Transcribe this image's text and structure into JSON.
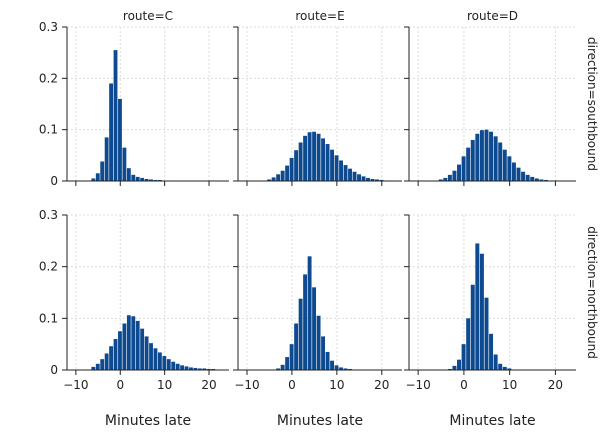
{
  "chart_data": {
    "type": "bar",
    "layout": "facet-grid",
    "xlabel": "Minutes late",
    "ylabel": "",
    "xlim": [
      -12,
      24.5
    ],
    "ylim": [
      0,
      0.3
    ],
    "xticks": [
      -10,
      0,
      10,
      20
    ],
    "yticks": [
      0,
      0.1,
      0.2,
      0.3
    ],
    "yticklabels": [
      "0",
      "0.1",
      "0.2",
      "0.3"
    ],
    "grid": true,
    "bar_color": "#0d4a8f",
    "bin_width": 1,
    "bin_start": -7.5,
    "col_titles": [
      "route=C",
      "route=E",
      "route=D"
    ],
    "row_titles": [
      "direction=southbound",
      "direction=northbound"
    ],
    "panels": [
      {
        "row": 0,
        "col": 0,
        "values": [
          0.0,
          0.005,
          0.015,
          0.038,
          0.085,
          0.19,
          0.255,
          0.16,
          0.065,
          0.025,
          0.012,
          0.008,
          0.006,
          0.004,
          0.003,
          0.002,
          0.002,
          0.001,
          0.001,
          0.0,
          0.0,
          0.0,
          0.0,
          0.0,
          0.0,
          0.0,
          0.0,
          0.0,
          0.0,
          0.0
        ]
      },
      {
        "row": 0,
        "col": 1,
        "values": [
          0.0,
          0.0,
          0.003,
          0.007,
          0.013,
          0.02,
          0.03,
          0.045,
          0.06,
          0.075,
          0.088,
          0.095,
          0.096,
          0.092,
          0.083,
          0.072,
          0.061,
          0.05,
          0.04,
          0.031,
          0.024,
          0.018,
          0.013,
          0.009,
          0.006,
          0.004,
          0.003,
          0.002,
          0.001,
          0.0
        ]
      },
      {
        "row": 0,
        "col": 2,
        "values": [
          0.0,
          0.0,
          0.003,
          0.006,
          0.012,
          0.02,
          0.032,
          0.048,
          0.065,
          0.08,
          0.092,
          0.099,
          0.1,
          0.096,
          0.087,
          0.075,
          0.061,
          0.048,
          0.036,
          0.026,
          0.018,
          0.012,
          0.008,
          0.005,
          0.003,
          0.002,
          0.001,
          0.0,
          0.0,
          0.0
        ]
      },
      {
        "row": 1,
        "col": 0,
        "values": [
          0.0,
          0.006,
          0.012,
          0.021,
          0.032,
          0.046,
          0.06,
          0.075,
          0.09,
          0.106,
          0.104,
          0.095,
          0.08,
          0.065,
          0.052,
          0.042,
          0.034,
          0.027,
          0.021,
          0.016,
          0.012,
          0.009,
          0.007,
          0.005,
          0.004,
          0.003,
          0.003,
          0.002,
          0.002,
          0.001
        ]
      },
      {
        "row": 1,
        "col": 1,
        "values": [
          0.0,
          0.0,
          0.0,
          0.0,
          0.003,
          0.01,
          0.025,
          0.05,
          0.09,
          0.138,
          0.185,
          0.22,
          0.16,
          0.105,
          0.065,
          0.035,
          0.018,
          0.009,
          0.005,
          0.003,
          0.002,
          0.001,
          0.0,
          0.0,
          0.0,
          0.0,
          0.0,
          0.0,
          0.0,
          0.0
        ]
      },
      {
        "row": 1,
        "col": 2,
        "values": [
          0.0,
          0.0,
          0.0,
          0.0,
          0.002,
          0.008,
          0.02,
          0.05,
          0.1,
          0.165,
          0.245,
          0.225,
          0.14,
          0.07,
          0.03,
          0.012,
          0.006,
          0.003,
          0.001,
          0.0,
          0.0,
          0.0,
          0.0,
          0.0,
          0.0,
          0.0,
          0.0,
          0.0,
          0.0,
          0.0
        ]
      }
    ]
  }
}
